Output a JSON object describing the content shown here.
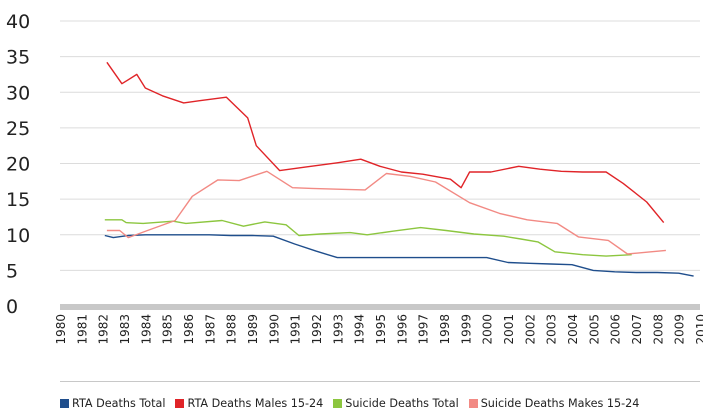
{
  "chart_data": {
    "type": "line",
    "title": "",
    "xlabel": "",
    "ylabel": "",
    "ylim": [
      0,
      40
    ],
    "yticks": [
      "0",
      "5",
      "10",
      "15",
      "20",
      "25",
      "30",
      "35",
      "40"
    ],
    "xlim": [
      1980,
      2010
    ],
    "x": [
      "1980",
      "1981",
      "1982",
      "1983",
      "1984",
      "1985",
      "1986",
      "1987",
      "1988",
      "1989",
      "1990",
      "1991",
      "1992",
      "1993",
      "1994",
      "1995",
      "1996",
      "1997",
      "1998",
      "1999",
      "2000",
      "2001",
      "2002",
      "2003",
      "2004",
      "2005",
      "2006",
      "2007",
      "2008",
      "2009",
      "2010"
    ],
    "grid": true,
    "legend_position": "bottom",
    "series": [
      {
        "name": "RTA Deaths Total",
        "color": "#1f4e8c",
        "points": [
          [
            1982.1,
            9.9
          ],
          [
            1982.5,
            9.6
          ],
          [
            1983.2,
            9.9
          ],
          [
            1984,
            10
          ],
          [
            1985,
            10
          ],
          [
            1986,
            10
          ],
          [
            1987,
            10
          ],
          [
            1988,
            9.9
          ],
          [
            1989,
            9.9
          ],
          [
            1990,
            9.8
          ],
          [
            1991,
            8.7
          ],
          [
            1992,
            7.7
          ],
          [
            1993,
            6.8
          ],
          [
            1994,
            6.8
          ],
          [
            1995,
            6.8
          ],
          [
            1996,
            6.8
          ],
          [
            1997,
            6.8
          ],
          [
            1998,
            6.8
          ],
          [
            1999,
            6.8
          ],
          [
            2000,
            6.8
          ],
          [
            2001,
            6.1
          ],
          [
            2002,
            6.0
          ],
          [
            2003,
            5.9
          ],
          [
            2004,
            5.8
          ],
          [
            2005,
            5.0
          ],
          [
            2006,
            4.8
          ],
          [
            2007,
            4.7
          ],
          [
            2008,
            4.7
          ],
          [
            2009,
            4.6
          ],
          [
            2009.7,
            4.2
          ]
        ]
      },
      {
        "name": "RTA Deaths Males 15-24",
        "color": "#e02428",
        "points": [
          [
            1982.2,
            34.2
          ],
          [
            1982.9,
            31.2
          ],
          [
            1983.6,
            32.5
          ],
          [
            1984,
            30.6
          ],
          [
            1984.8,
            29.5
          ],
          [
            1985.8,
            28.5
          ],
          [
            1986.5,
            28.8
          ],
          [
            1987.8,
            29.3
          ],
          [
            1988.8,
            26.4
          ],
          [
            1989.2,
            22.5
          ],
          [
            1990.3,
            19
          ],
          [
            1991.5,
            19.5
          ],
          [
            1993,
            20.1
          ],
          [
            1994.1,
            20.6
          ],
          [
            1995,
            19.6
          ],
          [
            1996,
            18.8
          ],
          [
            1997,
            18.5
          ],
          [
            1998.3,
            17.8
          ],
          [
            1998.8,
            16.6
          ],
          [
            1999.2,
            18.8
          ],
          [
            2000.2,
            18.8
          ],
          [
            2001.5,
            19.6
          ],
          [
            2002.5,
            19.2
          ],
          [
            2003.5,
            18.9
          ],
          [
            2004.5,
            18.8
          ],
          [
            2005.6,
            18.8
          ],
          [
            2006.4,
            17.2
          ],
          [
            2007.5,
            14.6
          ],
          [
            2008.3,
            11.7
          ]
        ]
      },
      {
        "name": "Suicide Deaths Total",
        "color": "#8cc63f",
        "points": [
          [
            1982.1,
            12.1
          ],
          [
            1982.9,
            12.1
          ],
          [
            1983.1,
            11.7
          ],
          [
            1983.9,
            11.6
          ],
          [
            1985.3,
            11.9
          ],
          [
            1985.9,
            11.6
          ],
          [
            1987.6,
            12.0
          ],
          [
            1988.6,
            11.2
          ],
          [
            1989.6,
            11.8
          ],
          [
            1990.6,
            11.4
          ],
          [
            1991.2,
            9.9
          ],
          [
            1992.2,
            10.1
          ],
          [
            1993.6,
            10.3
          ],
          [
            1994.4,
            10.0
          ],
          [
            1995.6,
            10.5
          ],
          [
            1996.9,
            11.0
          ],
          [
            1998.1,
            10.6
          ],
          [
            1999.4,
            10.1
          ],
          [
            2000.8,
            9.8
          ],
          [
            2001.6,
            9.4
          ],
          [
            2002.4,
            9.0
          ],
          [
            2003.2,
            7.6
          ],
          [
            2004.5,
            7.2
          ],
          [
            2005.6,
            7.0
          ],
          [
            2006.8,
            7.2
          ]
        ]
      },
      {
        "name": "Suicide Deaths Makes 15-24",
        "color": "#f28a84",
        "points": [
          [
            1982.2,
            10.6
          ],
          [
            1982.8,
            10.6
          ],
          [
            1983.2,
            9.6
          ],
          [
            1984.1,
            10.6
          ],
          [
            1985.4,
            12.0
          ],
          [
            1986.2,
            15.4
          ],
          [
            1987.4,
            17.7
          ],
          [
            1988.4,
            17.6
          ],
          [
            1989.7,
            18.9
          ],
          [
            1990.9,
            16.6
          ],
          [
            1991.8,
            16.5
          ],
          [
            1993.0,
            16.4
          ],
          [
            1994.3,
            16.3
          ],
          [
            1995.3,
            18.6
          ],
          [
            1996.4,
            18.2
          ],
          [
            1997.6,
            17.4
          ],
          [
            1999.2,
            14.5
          ],
          [
            2000.6,
            13.0
          ],
          [
            2001.9,
            12.1
          ],
          [
            2003.3,
            11.6
          ],
          [
            2004.3,
            9.7
          ],
          [
            2005.7,
            9.2
          ],
          [
            2006.6,
            7.3
          ],
          [
            2007.7,
            7.6
          ],
          [
            2008.4,
            7.8
          ]
        ]
      }
    ]
  }
}
